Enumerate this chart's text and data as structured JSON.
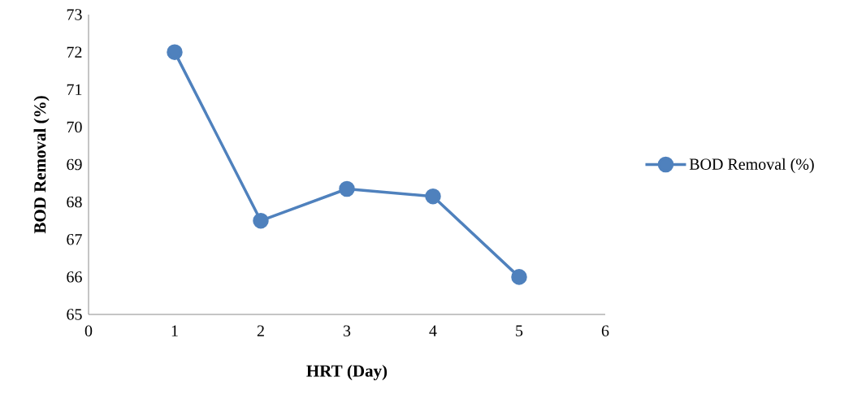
{
  "chart_data": {
    "type": "line",
    "xlabel": "HRT (Day)",
    "ylabel": "BOD Removal (%)",
    "x": [
      1,
      2,
      3,
      4,
      5
    ],
    "series": [
      {
        "name": "BOD Removal (%)",
        "color": "#4f81bd",
        "values": [
          72.0,
          67.5,
          68.35,
          68.15,
          66.0
        ]
      }
    ],
    "xlim": [
      0,
      6
    ],
    "xticks": [
      0,
      1,
      2,
      3,
      4,
      5,
      6
    ],
    "ylim": [
      65,
      73
    ],
    "yticks": [
      65,
      66,
      67,
      68,
      69,
      70,
      71,
      72,
      73
    ],
    "legend": "right",
    "marker": "circle",
    "line_style": "solid"
  }
}
